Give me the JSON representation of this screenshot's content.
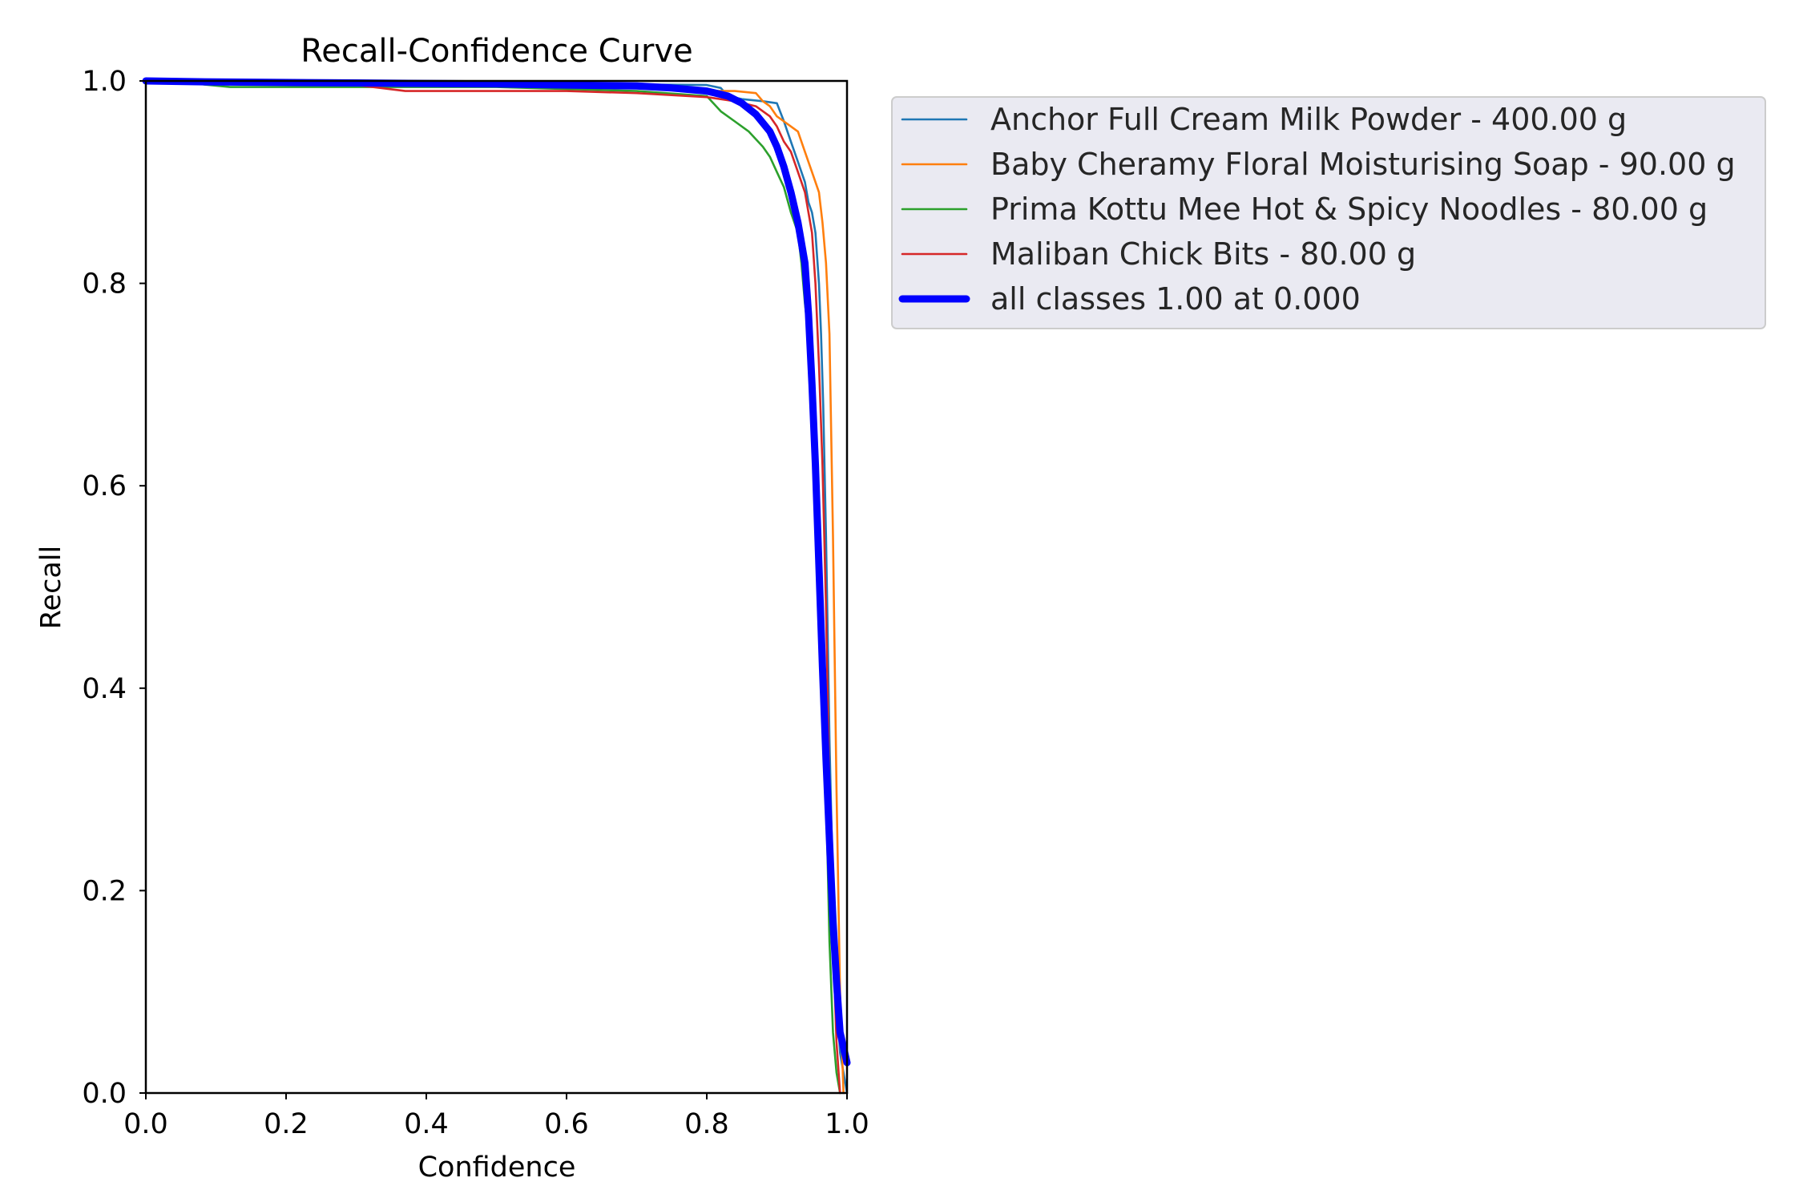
{
  "chart_data": {
    "type": "line",
    "title": "Recall-Confidence Curve",
    "xlabel": "Confidence",
    "ylabel": "Recall",
    "xlim": [
      0,
      1
    ],
    "ylim": [
      0,
      1
    ],
    "xticks": [
      "0.0",
      "0.2",
      "0.4",
      "0.6",
      "0.8",
      "1.0"
    ],
    "yticks": [
      "0.0",
      "0.2",
      "0.4",
      "0.6",
      "0.8",
      "1.0"
    ],
    "grid": false,
    "legend_position": "outside-upper-right",
    "series": [
      {
        "name": "Anchor Full Cream Milk Powder - 400.00 g",
        "color": "#1f77b4",
        "x": [
          0,
          0.1,
          0.3,
          0.6,
          0.8,
          0.82,
          0.83,
          0.85,
          0.88,
          0.9,
          0.91,
          0.92,
          0.93,
          0.94,
          0.945,
          0.95,
          0.955,
          0.96,
          0.963,
          0.966,
          0.97,
          0.975,
          0.98,
          0.985,
          0.99,
          1.0
        ],
        "y": [
          1.0,
          0.998,
          0.997,
          0.997,
          0.996,
          0.993,
          0.985,
          0.982,
          0.98,
          0.978,
          0.96,
          0.94,
          0.92,
          0.9,
          0.88,
          0.87,
          0.85,
          0.8,
          0.75,
          0.68,
          0.55,
          0.35,
          0.2,
          0.1,
          0.04,
          0.0
        ]
      },
      {
        "name": "Baby Cheramy Floral Moisturising Soap - 90.00 g",
        "color": "#ff7f0e",
        "x": [
          0,
          0.1,
          0.3,
          0.5,
          0.7,
          0.8,
          0.84,
          0.87,
          0.88,
          0.89,
          0.9,
          0.91,
          0.92,
          0.93,
          0.94,
          0.95,
          0.96,
          0.965,
          0.97,
          0.975,
          0.98,
          0.985,
          0.99,
          0.995
        ],
        "y": [
          1.0,
          0.998,
          0.997,
          0.996,
          0.994,
          0.99,
          0.99,
          0.988,
          0.98,
          0.975,
          0.965,
          0.96,
          0.955,
          0.95,
          0.93,
          0.91,
          0.89,
          0.86,
          0.82,
          0.75,
          0.55,
          0.3,
          0.1,
          0.0
        ]
      },
      {
        "name": "Prima Kottu Mee Hot & Spicy Noodles - 80.00 g",
        "color": "#2ca02c",
        "x": [
          0,
          0.06,
          0.12,
          0.3,
          0.5,
          0.7,
          0.8,
          0.82,
          0.84,
          0.86,
          0.88,
          0.89,
          0.9,
          0.91,
          0.92,
          0.93,
          0.935,
          0.94,
          0.945,
          0.95,
          0.955,
          0.96,
          0.965,
          0.97,
          0.975,
          0.98,
          0.985,
          0.99
        ],
        "y": [
          1.0,
          0.998,
          0.994,
          0.994,
          0.994,
          0.99,
          0.985,
          0.97,
          0.96,
          0.95,
          0.935,
          0.925,
          0.91,
          0.895,
          0.87,
          0.85,
          0.82,
          0.78,
          0.75,
          0.7,
          0.62,
          0.55,
          0.45,
          0.3,
          0.15,
          0.06,
          0.02,
          0.0
        ]
      },
      {
        "name": "Maliban Chick Bits - 80.00 g",
        "color": "#d62728",
        "x": [
          0,
          0.1,
          0.3,
          0.37,
          0.5,
          0.6,
          0.7,
          0.8,
          0.84,
          0.87,
          0.89,
          0.9,
          0.91,
          0.92,
          0.93,
          0.94,
          0.95,
          0.955,
          0.96,
          0.965,
          0.97,
          0.975,
          0.98,
          0.985,
          0.99
        ],
        "y": [
          1.0,
          0.998,
          0.996,
          0.99,
          0.99,
          0.99,
          0.988,
          0.984,
          0.98,
          0.975,
          0.965,
          0.955,
          0.94,
          0.93,
          0.91,
          0.89,
          0.85,
          0.8,
          0.72,
          0.62,
          0.48,
          0.3,
          0.15,
          0.05,
          0.0
        ]
      },
      {
        "name": "all classes 1.00 at 0.000",
        "color": "#0000ff",
        "linewidth": "thick",
        "x": [
          0,
          0.1,
          0.3,
          0.5,
          0.6,
          0.7,
          0.75,
          0.8,
          0.83,
          0.85,
          0.87,
          0.89,
          0.9,
          0.91,
          0.92,
          0.93,
          0.94,
          0.945,
          0.95,
          0.955,
          0.96,
          0.965,
          0.97,
          0.975,
          0.98,
          0.985,
          0.99,
          1.0
        ],
        "y": [
          1.0,
          0.999,
          0.998,
          0.997,
          0.996,
          0.995,
          0.993,
          0.99,
          0.985,
          0.978,
          0.967,
          0.95,
          0.935,
          0.915,
          0.89,
          0.86,
          0.82,
          0.77,
          0.7,
          0.62,
          0.52,
          0.42,
          0.33,
          0.25,
          0.17,
          0.11,
          0.06,
          0.03
        ]
      }
    ]
  }
}
